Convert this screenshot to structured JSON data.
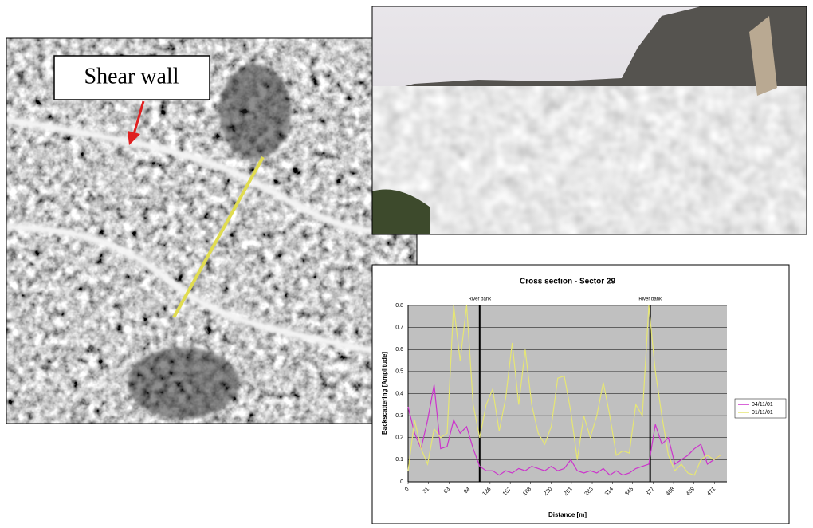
{
  "annotation": "Shear wall",
  "chart_data": {
    "type": "line",
    "title": "Cross section - Sector 29",
    "x_label": "Distance [m]",
    "y_label": "Backscattering [Amplitude]",
    "xlim": [
      0,
      490
    ],
    "xticks": [
      0,
      31,
      63,
      94,
      126,
      157,
      188,
      220,
      251,
      283,
      314,
      345,
      377,
      408,
      439,
      471
    ],
    "ylim": [
      0,
      0.8
    ],
    "yticks": [
      0,
      0.1,
      0.2,
      0.3,
      0.4,
      0.5,
      0.6,
      0.7,
      0.8
    ],
    "grid": true,
    "legend": "right",
    "x": [
      0,
      10,
      20,
      30,
      40,
      50,
      60,
      70,
      80,
      90,
      100,
      110,
      120,
      130,
      140,
      150,
      160,
      170,
      180,
      190,
      200,
      210,
      220,
      230,
      240,
      250,
      260,
      270,
      280,
      290,
      300,
      310,
      320,
      330,
      340,
      350,
      360,
      370,
      380,
      390,
      400,
      410,
      420,
      430,
      440,
      450,
      460,
      470,
      480
    ],
    "series": [
      {
        "name": "04/11/01",
        "color": "#cc33cc",
        "values": [
          0.34,
          0.22,
          0.15,
          0.28,
          0.44,
          0.15,
          0.16,
          0.28,
          0.22,
          0.25,
          0.15,
          0.07,
          0.05,
          0.05,
          0.03,
          0.05,
          0.04,
          0.06,
          0.05,
          0.07,
          0.06,
          0.05,
          0.07,
          0.05,
          0.06,
          0.1,
          0.05,
          0.04,
          0.05,
          0.04,
          0.06,
          0.03,
          0.05,
          0.03,
          0.04,
          0.06,
          0.07,
          0.08,
          0.26,
          0.17,
          0.2,
          0.08,
          0.1,
          0.12,
          0.15,
          0.17,
          0.08,
          0.1,
          0.12
        ]
      },
      {
        "name": "01/11/01",
        "color": "#e6e673",
        "values": [
          0.05,
          0.28,
          0.15,
          0.08,
          0.24,
          0.2,
          0.22,
          0.8,
          0.55,
          0.8,
          0.35,
          0.2,
          0.35,
          0.42,
          0.23,
          0.38,
          0.63,
          0.35,
          0.6,
          0.35,
          0.22,
          0.17,
          0.25,
          0.47,
          0.48,
          0.32,
          0.1,
          0.3,
          0.2,
          0.3,
          0.45,
          0.3,
          0.12,
          0.14,
          0.13,
          0.35,
          0.3,
          0.8,
          0.5,
          0.3,
          0.12,
          0.05,
          0.08,
          0.04,
          0.03,
          0.1,
          0.12,
          0.1,
          0.12
        ]
      }
    ],
    "annotations": [
      {
        "text": "River bank",
        "x": 110
      },
      {
        "text": "River bank",
        "x": 372
      }
    ]
  }
}
